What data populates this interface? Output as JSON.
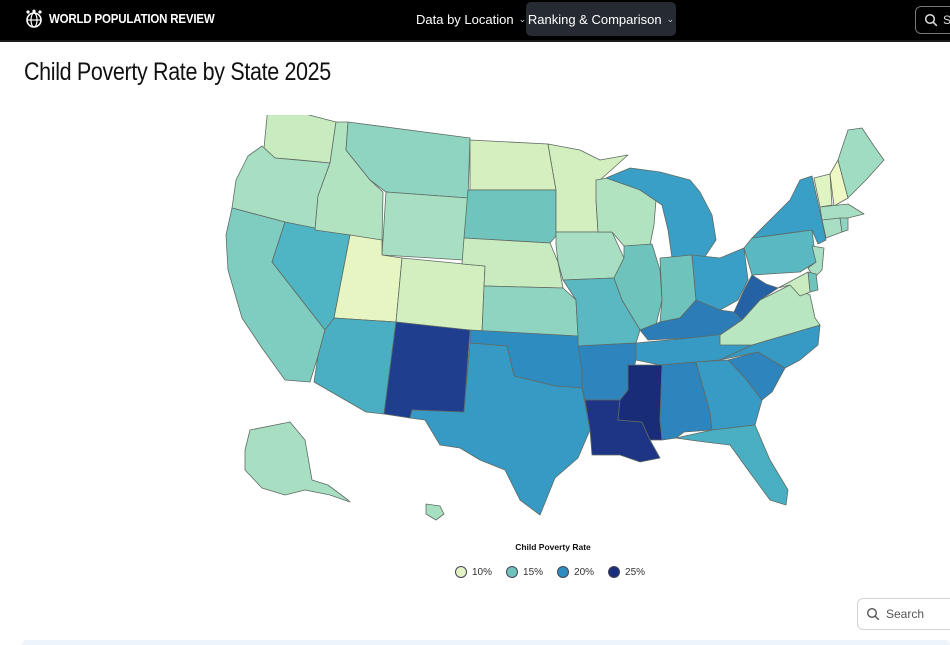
{
  "header": {
    "brand": "WORLD POPULATION REVIEW",
    "nav": [
      {
        "label": "Data by Location",
        "chevron": "chevron-down-icon"
      },
      {
        "label": "Ranking & Comparison",
        "chevron": "chevron-down-icon"
      }
    ],
    "search_partial": "S"
  },
  "page": {
    "title": "Child Poverty Rate by State 2025"
  },
  "map_data": {
    "type": "choropleth",
    "region": "United States",
    "legend_title": "Child Poverty Rate",
    "scale": [
      {
        "label": "10%",
        "color": "#e3f4c3"
      },
      {
        "label": "15%",
        "color": "#6fc3bd"
      },
      {
        "label": "20%",
        "color": "#2e8cc0"
      },
      {
        "label": "25%",
        "color": "#1a2f7c"
      }
    ],
    "state_colors": {
      "WA": "#c9ebc0",
      "OR": "#a8dfc3",
      "CA": "#7fcdc0",
      "NV": "#4fb4c4",
      "ID": "#b2e3c1",
      "MT": "#8fd3c1",
      "WY": "#a8dfc3",
      "UT": "#e6f5c1",
      "CO": "#d3efc0",
      "AZ": "#4aafc3",
      "NM": "#203e8e",
      "ND": "#d5efbf",
      "SD": "#6fc4be",
      "NE": "#c9ebc0",
      "KS": "#8fd3c1",
      "OK": "#2e8cc0",
      "TX": "#379ac4",
      "MN": "#d3efc0",
      "IA": "#a8dfc3",
      "MO": "#5ab8c2",
      "AR": "#2e84bc",
      "LA": "#1e3585",
      "WI": "#b2e3c1",
      "IL": "#6fc3bd",
      "MI": "#3a9fc6",
      "IN": "#6fc3bd",
      "OH": "#3a9fc6",
      "KY": "#2c7cb8",
      "TN": "#379ac4",
      "MS": "#192c78",
      "AL": "#2e84bc",
      "GA": "#389bc6",
      "FL": "#4aafc3",
      "SC": "#2e84bc",
      "NC": "#379ac4",
      "VA": "#b7e6c0",
      "WV": "#2561a5",
      "PA": "#5ab8c2",
      "NY": "#3a9fc6",
      "VT": "#e0f3c2",
      "NH": "#eef8c5",
      "ME": "#a0dcc2",
      "MA": "#a8dfc3",
      "CT": "#a8dfc3",
      "RI": "#8fd3c1",
      "NJ": "#a8dfc3",
      "DE": "#6fc3bd",
      "MD": "#c9ebc0",
      "AK": "#a8dfc3",
      "HI": "#a8dfc3"
    }
  },
  "bottom": {
    "search_label": "Search"
  }
}
